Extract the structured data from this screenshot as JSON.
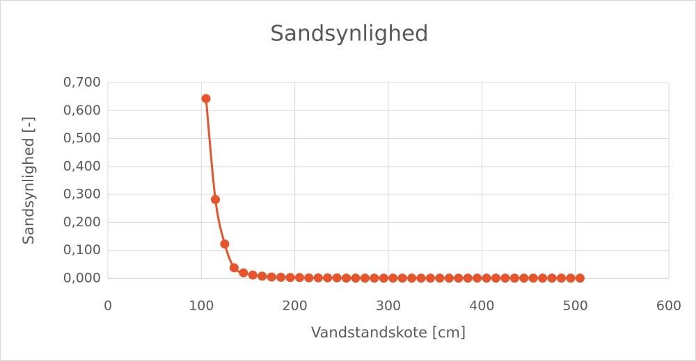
{
  "chart_data": {
    "type": "scatter",
    "title": "Sandsynlighed",
    "xlabel": "Vandstandskote [cm]",
    "ylabel": "Sandsynlighed [-]",
    "x": [
      105,
      115,
      125,
      135,
      145,
      155,
      165,
      175,
      185,
      195,
      205,
      215,
      225,
      235,
      245,
      255,
      265,
      275,
      285,
      295,
      305,
      315,
      325,
      335,
      345,
      355,
      365,
      375,
      385,
      395,
      405,
      415,
      425,
      435,
      445,
      455,
      465,
      475,
      485,
      495,
      505
    ],
    "series": [
      {
        "name": "Sandsynlighed",
        "color": "#e9532a",
        "values": [
          0.643,
          0.282,
          0.123,
          0.038,
          0.02,
          0.012,
          0.008,
          0.005,
          0.004,
          0.003,
          0.003,
          0.002,
          0.002,
          0.002,
          0.002,
          0.001,
          0.001,
          0.001,
          0.001,
          0.001,
          0.001,
          0.001,
          0.001,
          0.001,
          0.001,
          0.001,
          0.001,
          0.001,
          0.001,
          0.001,
          0.001,
          0.001,
          0.001,
          0.001,
          0.001,
          0.001,
          0.001,
          0.001,
          0.001,
          0.001,
          0.001
        ]
      }
    ],
    "xlim": [
      0,
      600
    ],
    "xticks": [
      0,
      100,
      200,
      300,
      400,
      500,
      600
    ],
    "ylim": [
      0,
      0.7
    ],
    "yticks": [
      {
        "value": 0,
        "label": "0,000"
      },
      {
        "value": 0.1,
        "label": "0,100"
      },
      {
        "value": 0.2,
        "label": "0,200"
      },
      {
        "value": 0.3,
        "label": "0,300"
      },
      {
        "value": 0.4,
        "label": "0,400"
      },
      {
        "value": 0.5,
        "label": "0,500"
      },
      {
        "value": 0.6,
        "label": "0,600"
      },
      {
        "value": 0.7,
        "label": "0,700"
      }
    ],
    "grid": true,
    "smooth": true
  }
}
